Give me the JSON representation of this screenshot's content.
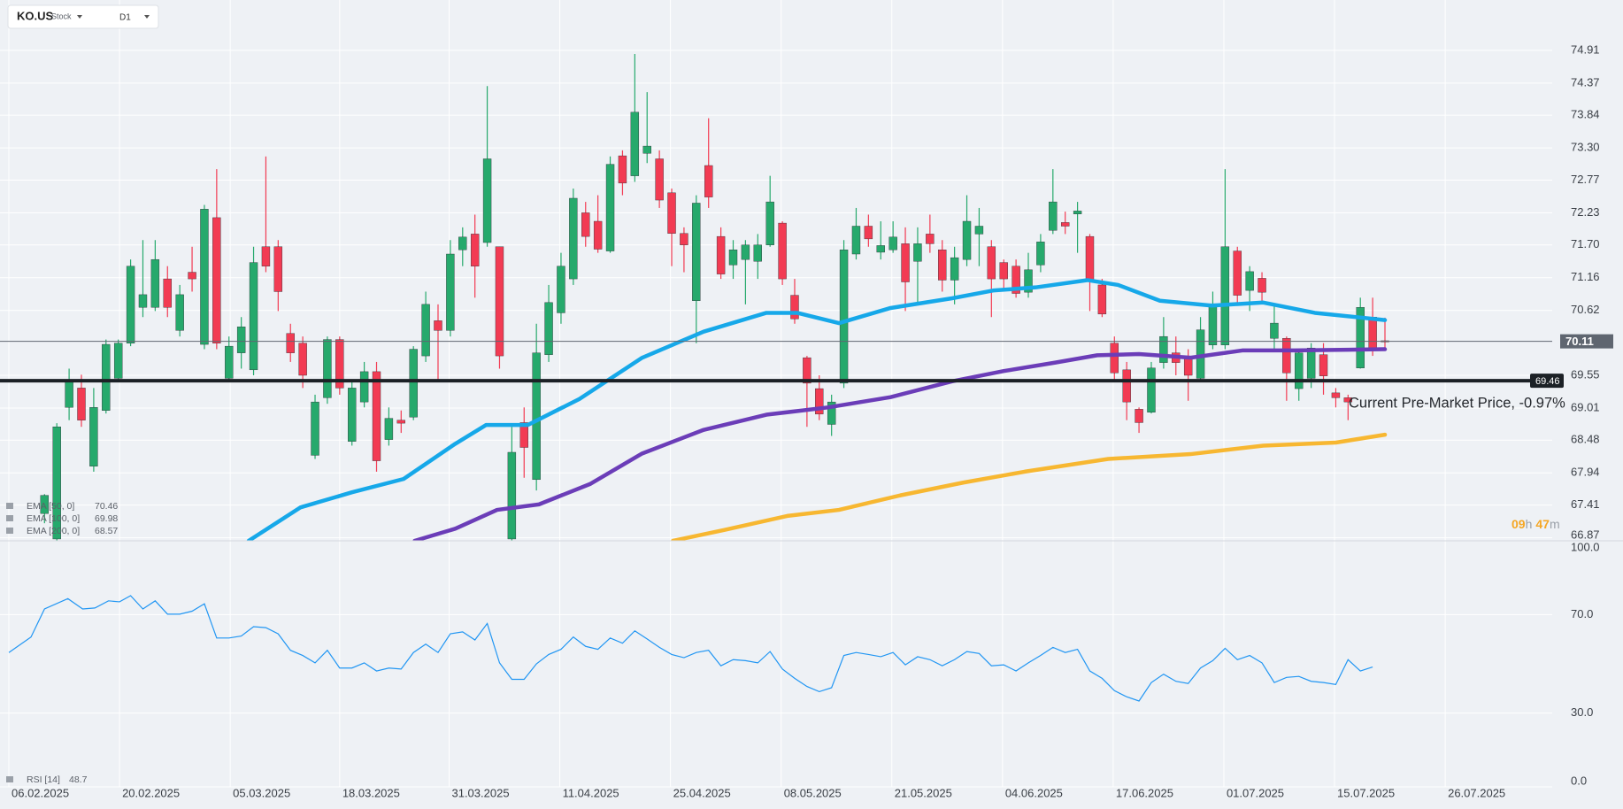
{
  "header": {
    "symbol": "KO.US",
    "kind": "Stock",
    "interval": "D1"
  },
  "chart_data": [
    {
      "type": "candlestick",
      "up_color": "#26a96c",
      "down_color": "#f23b53",
      "grid": true,
      "xlim": [
        -3.62,
        122.6
      ],
      "ylim": [
        66.82,
        75.74
      ],
      "xticks": [
        {
          "value": -2.9,
          "label": "06.02.2025"
        },
        {
          "value": 6.1,
          "label": "20.02.2025"
        },
        {
          "value": 15.1,
          "label": "05.03.2025"
        },
        {
          "value": 24,
          "label": "18.03.2025"
        },
        {
          "value": 32.9,
          "label": "31.03.2025"
        },
        {
          "value": 41.9,
          "label": "11.04.2025"
        },
        {
          "value": 50.9,
          "label": "25.04.2025"
        },
        {
          "value": 59.9,
          "label": "08.05.2025"
        },
        {
          "value": 68.9,
          "label": "21.05.2025"
        },
        {
          "value": 77.9,
          "label": "04.06.2025"
        },
        {
          "value": 86.9,
          "label": "17.06.2025"
        },
        {
          "value": 95.9,
          "label": "01.07.2025"
        },
        {
          "value": 104.9,
          "label": "15.07.2025"
        },
        {
          "value": 113.9,
          "label": "26.07.2025"
        }
      ],
      "yticks": [
        74.91,
        74.37,
        73.84,
        {
          "value": 73.3,
          "label": "73.30"
        },
        72.77,
        72.23,
        {
          "value": 71.7,
          "label": "71.70"
        },
        71.16,
        70.62,
        69.55,
        69.01,
        68.48,
        67.94,
        67.41,
        66.87
      ],
      "open": [
        67.27,
        66.85,
        69.02,
        69.34,
        68.05,
        68.97,
        69.5,
        70.08,
        70.67,
        70.67,
        71.14,
        70.29,
        71.25,
        70.06,
        72.15,
        69.5,
        69.92,
        69.64,
        71.67,
        71.67,
        70.24,
        70.08,
        68.23,
        69.18,
        70.14,
        68.46,
        69.11,
        69.61,
        68.49,
        68.81,
        68.86,
        69.87,
        70.45,
        70.29,
        71.62,
        71.88,
        71.74,
        71.67,
        66.85,
        68.77,
        67.83,
        69.89,
        70.58,
        71.14,
        72.23,
        72.09,
        71.6,
        73.17,
        72.84,
        73.21,
        73.12,
        72.56,
        71.89,
        70.78,
        73.01,
        71.84,
        71.37,
        71.46,
        71.43,
        71.7,
        72.06,
        70.87,
        69.84,
        69.33,
        68.74,
        69.42,
        71.55,
        72.01,
        71.58,
        71.62,
        71.72,
        71.43,
        71.88,
        71.62,
        71.12,
        71.46,
        71.88,
        71.67,
        71.41,
        71.35,
        70.92,
        71.37,
        71.94,
        72.07,
        72.21,
        71.84,
        71.04,
        70.08,
        69.64,
        68.99,
        68.94,
        69.76,
        69.92,
        69.84,
        69.5,
        70.05,
        70.05,
        71.6,
        70.95,
        71.15,
        70.16,
        70.16,
        69.33,
        69.5,
        69.89,
        69.26,
        69.18,
        69.67,
        70.51,
        70.12
      ],
      "high": [
        67.59,
        68.76,
        69.66,
        69.56,
        69.34,
        70.14,
        70.14,
        71.46,
        71.78,
        71.78,
        71.35,
        71.04,
        71.67,
        72.36,
        72.95,
        70.19,
        70.51,
        71.67,
        73.16,
        71.78,
        70.4,
        70.19,
        69.23,
        70.19,
        70.19,
        69.45,
        69.77,
        69.77,
        69.02,
        68.97,
        70.03,
        70.93,
        70.72,
        71.78,
        71.99,
        72.2,
        74.32,
        71.67,
        68.7,
        69.02,
        70.4,
        71.04,
        71.57,
        72.63,
        72.41,
        72.52,
        73.16,
        73.26,
        74.85,
        74.22,
        73.26,
        72.63,
        71.99,
        72.52,
        73.79,
        71.99,
        71.78,
        71.78,
        71.88,
        72.84,
        72.09,
        71.14,
        69.87,
        69.55,
        69.23,
        71.78,
        72.31,
        72.2,
        72.09,
        72.09,
        71.99,
        71.99,
        72.2,
        71.78,
        71.67,
        72.52,
        72.31,
        71.78,
        71.46,
        71.46,
        71.57,
        71.88,
        72.95,
        72.25,
        72.41,
        71.88,
        71.14,
        70.19,
        69.77,
        69.02,
        69.77,
        70.51,
        70.19,
        69.98,
        70.51,
        70.93,
        72.95,
        71.67,
        71.35,
        71.25,
        70.72,
        70.19,
        69.98,
        70.08,
        70.08,
        69.34,
        69.23,
        70.83,
        70.83,
        70.5
      ],
      "low": [
        67.11,
        66.8,
        68.81,
        68.7,
        67.96,
        68.92,
        69.45,
        70.03,
        70.51,
        70.61,
        70.51,
        70.19,
        70.93,
        69.98,
        69.98,
        69.45,
        69.66,
        69.55,
        71.25,
        70.61,
        69.77,
        69.34,
        68.17,
        69.08,
        69.23,
        68.39,
        69.02,
        67.96,
        68.39,
        68.6,
        68.81,
        69.77,
        69.45,
        70.19,
        71.35,
        70.83,
        71.67,
        69.66,
        66.8,
        67.86,
        67.65,
        69.77,
        70.4,
        71.04,
        71.67,
        71.57,
        71.57,
        72.52,
        72.74,
        73.05,
        72.31,
        71.35,
        71.25,
        70.08,
        72.31,
        71.14,
        71.14,
        70.72,
        71.14,
        71.67,
        71.04,
        70.4,
        68.7,
        68.81,
        68.55,
        69.34,
        71.46,
        71.67,
        71.46,
        71.57,
        70.61,
        70.72,
        71.57,
        70.93,
        70.72,
        71.35,
        71.35,
        70.51,
        70.93,
        70.83,
        70.83,
        71.25,
        71.88,
        71.88,
        71.57,
        70.61,
        70.51,
        69.45,
        68.81,
        68.6,
        68.92,
        69.66,
        69.55,
        69.13,
        69.45,
        69.98,
        69.98,
        70.72,
        70.61,
        70.72,
        69.98,
        69.13,
        69.13,
        69.34,
        69.23,
        69.02,
        68.81,
        69.66,
        69.87,
        70.0
      ],
      "close": [
        67.57,
        68.7,
        69.45,
        68.81,
        69.02,
        70.06,
        70.08,
        71.35,
        70.88,
        71.46,
        70.67,
        70.88,
        71.14,
        72.29,
        70.08,
        70.03,
        70.35,
        71.41,
        71.35,
        70.93,
        69.92,
        69.55,
        69.11,
        70.14,
        69.34,
        69.34,
        69.61,
        68.14,
        68.84,
        68.76,
        69.98,
        70.72,
        70.29,
        71.55,
        71.83,
        71.35,
        73.12,
        69.87,
        68.28,
        68.36,
        69.92,
        70.75,
        71.35,
        72.47,
        71.84,
        71.63,
        73.03,
        72.72,
        73.89,
        73.33,
        72.44,
        71.89,
        71.7,
        72.39,
        72.49,
        71.22,
        71.62,
        71.7,
        71.7,
        72.41,
        71.14,
        70.48,
        69.42,
        68.91,
        69.11,
        71.62,
        72.01,
        71.8,
        71.69,
        71.83,
        71.09,
        71.72,
        71.72,
        71.12,
        71.49,
        72.09,
        72.01,
        71.14,
        71.14,
        70.9,
        71.29,
        71.75,
        72.41,
        72.01,
        72.26,
        71.12,
        70.56,
        69.59,
        69.11,
        68.77,
        69.67,
        70.19,
        69.76,
        69.55,
        70.3,
        70.73,
        71.67,
        70.87,
        71.26,
        70.92,
        70.41,
        69.59,
        69.92,
        70.0,
        69.54,
        69.18,
        69.11,
        70.67,
        69.96,
        70.1
      ],
      "series": [
        {
          "name": "EMA [50, 0]",
          "last": 70.46,
          "color": "#16a8e9",
          "x": [
            16.6,
            20.8,
            25,
            29.2,
            33.4,
            35.9,
            39.3,
            43.5,
            48.6,
            53.6,
            58.7,
            61.2,
            64.6,
            68.8,
            73.8,
            77.2,
            80.6,
            84.8,
            87.3,
            90.7,
            94.9,
            99.1,
            103.3,
            109
          ],
          "values": [
            66.82,
            67.37,
            67.62,
            67.84,
            68.42,
            68.73,
            68.73,
            69.16,
            69.84,
            70.27,
            70.58,
            70.58,
            70.41,
            70.66,
            70.82,
            70.95,
            71.0,
            71.12,
            71.04,
            70.78,
            70.7,
            70.75,
            70.58,
            70.46
          ]
        },
        {
          "name": "EMA [100, 0]",
          "last": 69.98,
          "color": "#6b3db8",
          "x": [
            30.1,
            33.4,
            36.8,
            40.2,
            44.4,
            48.6,
            53.6,
            58.7,
            63.7,
            68.8,
            73.8,
            78,
            82.2,
            85.6,
            89,
            93.2,
            97.4,
            101.6,
            109
          ],
          "values": [
            66.82,
            67.02,
            67.33,
            67.42,
            67.76,
            68.26,
            68.65,
            68.9,
            69.02,
            69.19,
            69.45,
            69.62,
            69.76,
            69.88,
            69.9,
            69.84,
            69.96,
            69.96,
            69.98
          ]
        },
        {
          "name": "EMA [200, 0]",
          "last": 68.57,
          "color": "#f7b731",
          "x": [
            51.1,
            55.3,
            60.4,
            64.6,
            69.6,
            74.7,
            79.7,
            86.5,
            93.2,
            99.1,
            105,
            109
          ],
          "values": [
            66.82,
            67.0,
            67.23,
            67.33,
            67.57,
            67.78,
            67.96,
            68.17,
            68.25,
            68.39,
            68.44,
            68.57
          ]
        }
      ],
      "hlines": [
        {
          "value": 70.11,
          "color": "#5f6670"
        },
        {
          "value": 69.46,
          "color": "#1c2126"
        }
      ],
      "annotation": "Current Pre-Market Price, -0.97%",
      "countdown": {
        "hours": "09",
        "h": "h",
        "minutes": "47",
        "m": "m"
      }
    },
    {
      "type": "line",
      "name": "RSI [14]",
      "last": 48.7,
      "color": "#2196f3",
      "grid": true,
      "xlim": [
        -3.62,
        122.6
      ],
      "ylim": [
        0,
        100
      ],
      "yticks": [
        {
          "value": 100,
          "label": "100.0"
        },
        {
          "value": 70,
          "label": "70.0"
        },
        {
          "value": 30,
          "label": "30.0"
        },
        {
          "value": 0,
          "label": "0.0"
        }
      ],
      "x": [
        -2.9,
        -1.1,
        0,
        1.9,
        3.1,
        4.1,
        5.2,
        6.1,
        7,
        8,
        9,
        10,
        11,
        12,
        13,
        14,
        15,
        16,
        17,
        18,
        19,
        20,
        21,
        22,
        23,
        24,
        25,
        26,
        27,
        28,
        29,
        30,
        31,
        32,
        33,
        34,
        35,
        36,
        37,
        38,
        39,
        40,
        41,
        42,
        43,
        44,
        45,
        46,
        47,
        48,
        49,
        50,
        51,
        52,
        53,
        54,
        55,
        56,
        57,
        58,
        59,
        60,
        61,
        62,
        63,
        64,
        65,
        66,
        67,
        68,
        69,
        70,
        71,
        72,
        73,
        74,
        75,
        76,
        77,
        78,
        79,
        80,
        81,
        82,
        83,
        84,
        85,
        86,
        87,
        88,
        89,
        90,
        91,
        92,
        93,
        94,
        95,
        96,
        97,
        98,
        99,
        100,
        101,
        102,
        103,
        104,
        105,
        106,
        107,
        108
      ],
      "values": [
        54.6,
        60.9,
        72.3,
        76.5,
        72.3,
        72.7,
        75.6,
        75.2,
        77.7,
        72.3,
        75.6,
        70.2,
        70.2,
        71.4,
        74.4,
        60.5,
        60.5,
        61.3,
        65.1,
        64.7,
        62.2,
        55.5,
        53.4,
        50.4,
        55.5,
        48.3,
        48.3,
        50.4,
        47.1,
        48.3,
        47.9,
        54.6,
        58.0,
        54.6,
        62.2,
        63.0,
        59.7,
        66.4,
        50.4,
        43.7,
        43.7,
        50.0,
        53.8,
        55.9,
        60.9,
        57.1,
        55.9,
        60.5,
        58.4,
        63.4,
        60.1,
        56.7,
        53.8,
        52.5,
        54.6,
        55.5,
        49.2,
        51.7,
        51.3,
        50.4,
        55.0,
        47.9,
        44.1,
        40.8,
        38.7,
        40.3,
        53.4,
        54.6,
        53.8,
        52.9,
        54.6,
        49.6,
        52.9,
        51.7,
        49.2,
        51.7,
        55.0,
        54.2,
        49.2,
        49.6,
        47.1,
        50.4,
        53.4,
        56.7,
        54.6,
        55.9,
        47.1,
        44.1,
        39.1,
        36.6,
        34.9,
        42.4,
        45.8,
        42.9,
        42.0,
        48.3,
        51.3,
        56.3,
        51.7,
        53.4,
        50.4,
        42.4,
        44.5,
        44.9,
        42.9,
        42.4,
        41.6,
        51.7,
        47.1,
        48.7
      ]
    }
  ]
}
